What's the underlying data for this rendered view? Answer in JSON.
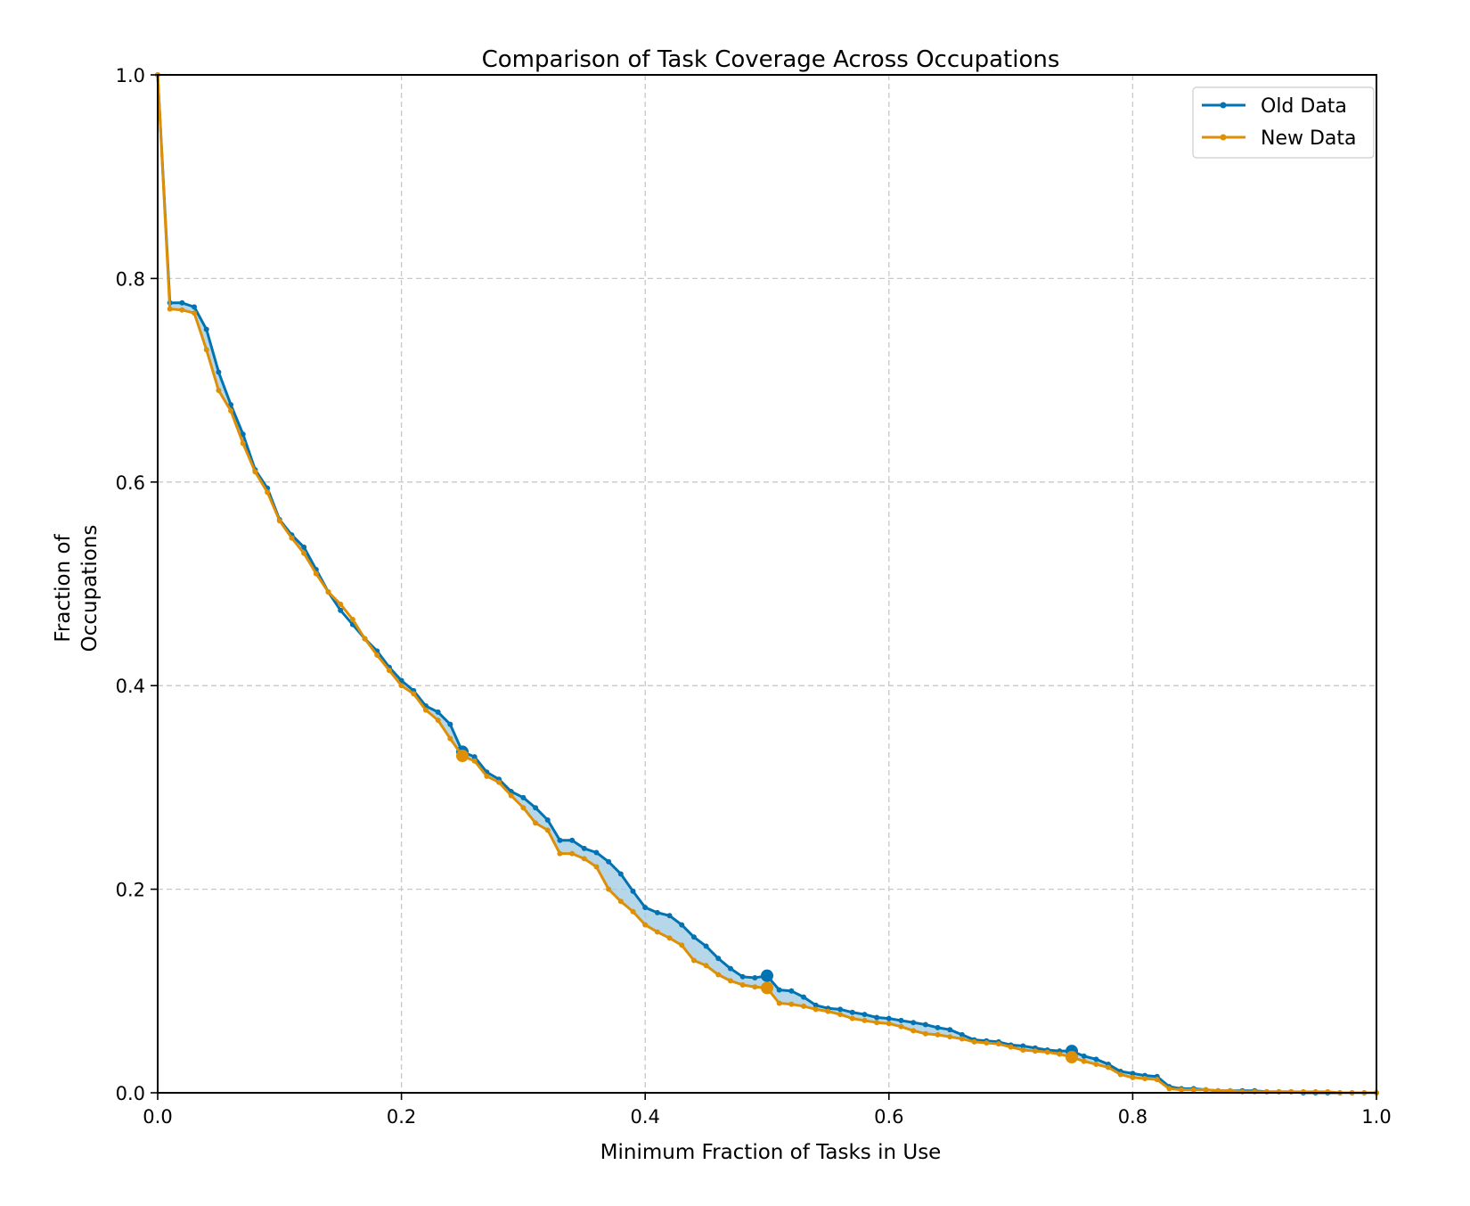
{
  "chart_data": {
    "type": "line",
    "title": "Comparison of Task Coverage Across Occupations",
    "xlabel": "Minimum Fraction of Tasks in Use",
    "ylabel": [
      "Fraction of",
      "Occupations"
    ],
    "xlim": [
      0.0,
      1.0
    ],
    "ylim": [
      0.0,
      1.0
    ],
    "xticks": [
      "0.0",
      "0.2",
      "0.4",
      "0.6",
      "0.8",
      "1.0"
    ],
    "yticks": [
      "0.0",
      "0.2",
      "0.4",
      "0.6",
      "0.8",
      "1.0"
    ],
    "grid": true,
    "legend_position": "top-right",
    "fill_between": {
      "color": "#9ecae1",
      "description_source": "area between Old Data and New Data"
    },
    "x_step": 0.01,
    "highlight_x": [
      0.25,
      0.5,
      0.75
    ],
    "series": [
      {
        "name": "Old Data",
        "color": "#0173B2",
        "values": [
          1.0,
          0.776,
          0.776,
          0.772,
          0.75,
          0.708,
          0.676,
          0.647,
          0.612,
          0.594,
          0.563,
          0.548,
          0.536,
          0.514,
          0.492,
          0.474,
          0.46,
          0.446,
          0.434,
          0.418,
          0.405,
          0.395,
          0.38,
          0.374,
          0.362,
          0.335,
          0.33,
          0.315,
          0.308,
          0.296,
          0.29,
          0.28,
          0.268,
          0.248,
          0.248,
          0.24,
          0.236,
          0.227,
          0.215,
          0.198,
          0.182,
          0.177,
          0.174,
          0.165,
          0.153,
          0.144,
          0.132,
          0.122,
          0.114,
          0.113,
          0.115,
          0.101,
          0.1,
          0.094,
          0.086,
          0.083,
          0.082,
          0.079,
          0.077,
          0.074,
          0.073,
          0.071,
          0.069,
          0.067,
          0.064,
          0.062,
          0.057,
          0.052,
          0.051,
          0.05,
          0.047,
          0.046,
          0.044,
          0.042,
          0.041,
          0.041,
          0.036,
          0.033,
          0.028,
          0.021,
          0.019,
          0.017,
          0.016,
          0.006,
          0.004,
          0.004,
          0.003,
          0.002,
          0.002,
          0.002,
          0.002,
          0.001,
          0.001,
          0.001,
          0.0,
          0.0,
          0.0,
          0.0,
          0.0,
          0.0,
          0.0
        ]
      },
      {
        "name": "New Data",
        "color": "#DE8F05",
        "values": [
          1.0,
          0.77,
          0.769,
          0.766,
          0.73,
          0.69,
          0.67,
          0.638,
          0.61,
          0.59,
          0.562,
          0.545,
          0.53,
          0.51,
          0.492,
          0.48,
          0.465,
          0.446,
          0.43,
          0.415,
          0.4,
          0.392,
          0.376,
          0.366,
          0.348,
          0.331,
          0.326,
          0.311,
          0.305,
          0.292,
          0.28,
          0.265,
          0.258,
          0.235,
          0.235,
          0.23,
          0.222,
          0.2,
          0.188,
          0.178,
          0.165,
          0.158,
          0.152,
          0.145,
          0.13,
          0.125,
          0.116,
          0.11,
          0.106,
          0.104,
          0.103,
          0.088,
          0.087,
          0.085,
          0.082,
          0.08,
          0.077,
          0.073,
          0.071,
          0.069,
          0.068,
          0.065,
          0.061,
          0.058,
          0.057,
          0.055,
          0.053,
          0.05,
          0.049,
          0.048,
          0.045,
          0.042,
          0.041,
          0.04,
          0.038,
          0.035,
          0.031,
          0.028,
          0.025,
          0.018,
          0.015,
          0.014,
          0.013,
          0.004,
          0.003,
          0.003,
          0.003,
          0.002,
          0.002,
          0.001,
          0.001,
          0.001,
          0.001,
          0.001,
          0.001,
          0.001,
          0.001,
          0.0,
          0.0,
          0.0,
          0.0
        ]
      }
    ]
  }
}
